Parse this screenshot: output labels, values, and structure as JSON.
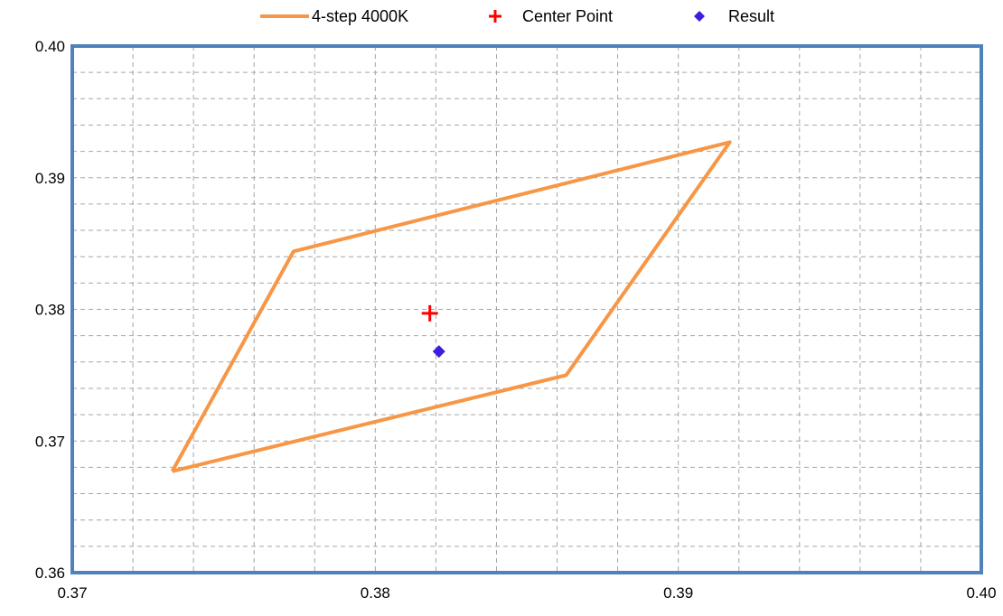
{
  "chart_data": {
    "type": "scatter",
    "title": "",
    "xlabel": "",
    "ylabel": "",
    "xlim": [
      0.37,
      0.4
    ],
    "ylim": [
      0.36,
      0.4
    ],
    "x_ticks": [
      "0.37",
      "0.38",
      "0.39",
      "0.40"
    ],
    "y_ticks": [
      "0.36",
      "0.37",
      "0.38",
      "0.39",
      "0.40"
    ],
    "grid": true,
    "legend_position": "top",
    "series": [
      {
        "name": "4-step 4000K",
        "kind": "line",
        "color": "#F79646",
        "x": [
          0.3733,
          0.3773,
          0.3917,
          0.3863,
          0.3733
        ],
        "y": [
          0.3677,
          0.3844,
          0.3927,
          0.375,
          0.3677
        ]
      },
      {
        "name": "Center Point",
        "kind": "marker",
        "marker": "plus",
        "color": "#FF0000",
        "x": [
          0.3818
        ],
        "y": [
          0.3797
        ]
      },
      {
        "name": "Result",
        "kind": "marker",
        "marker": "diamond",
        "color": "#3A1FE0",
        "x": [
          0.3821
        ],
        "y": [
          0.3768
        ]
      }
    ],
    "plot_border_color": "#4F81BD"
  }
}
